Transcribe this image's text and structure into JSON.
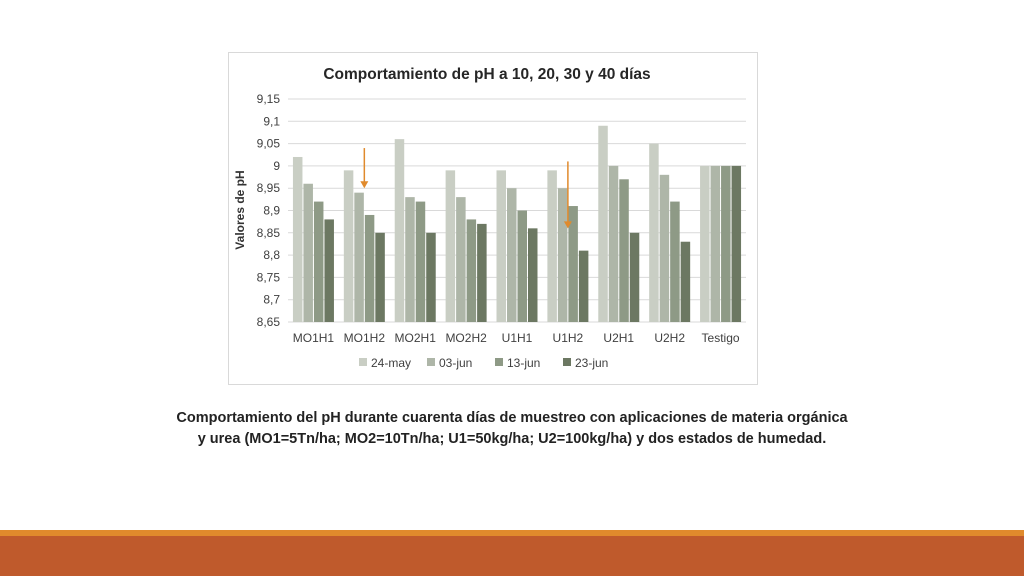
{
  "colors": {
    "series": [
      "#c9cec4",
      "#aeb6a8",
      "#8e9a86",
      "#6c7862"
    ],
    "arrow": "#e08a2c",
    "band_top": "#e08a2c",
    "band_bottom": "#bf5a2c"
  },
  "chart_data": {
    "type": "bar",
    "title": "Comportamiento de pH a 10, 20, 30 y 40 días",
    "ylabel": "Valores de pH",
    "xlabel": "",
    "categories": [
      "MO1H1",
      "MO1H2",
      "MO2H1",
      "MO2H2",
      "U1H1",
      "U1H2",
      "U2H1",
      "U2H2",
      "Testigo"
    ],
    "series": [
      {
        "name": "24-may",
        "values": [
          9.02,
          8.99,
          9.06,
          8.99,
          8.99,
          8.99,
          9.09,
          9.05,
          9.0
        ]
      },
      {
        "name": "03-jun",
        "values": [
          8.96,
          8.94,
          8.93,
          8.93,
          8.95,
          8.95,
          9.0,
          8.98,
          9.0
        ]
      },
      {
        "name": "13-jun",
        "values": [
          8.92,
          8.89,
          8.92,
          8.88,
          8.9,
          8.91,
          8.97,
          8.92,
          9.0
        ]
      },
      {
        "name": "23-jun",
        "values": [
          8.88,
          8.85,
          8.85,
          8.87,
          8.86,
          8.81,
          8.85,
          8.83,
          9.0
        ]
      }
    ],
    "ylim": [
      8.65,
      9.15
    ],
    "yticks": [
      "8,65",
      "8,7",
      "8,75",
      "8,8",
      "8,85",
      "8,9",
      "8,95",
      "9",
      "9,05",
      "9,1",
      "9,15"
    ],
    "ytick_values": [
      8.65,
      8.7,
      8.75,
      8.8,
      8.85,
      8.9,
      8.95,
      9.0,
      9.05,
      9.1,
      9.15
    ],
    "grid": true,
    "legend_position": "bottom",
    "arrows": [
      {
        "category": "MO1H2",
        "from": 9.04,
        "to": 8.95
      },
      {
        "category": "U1H2",
        "from": 9.01,
        "to": 8.86
      }
    ]
  },
  "caption": {
    "line1": "Comportamiento del pH durante cuarenta días de muestreo con aplicaciones de materia orgánica",
    "line2": "y urea (MO1=5Tn/ha; MO2=10Tn/ha; U1=50kg/ha; U2=100kg/ha) y dos estados de humedad."
  }
}
